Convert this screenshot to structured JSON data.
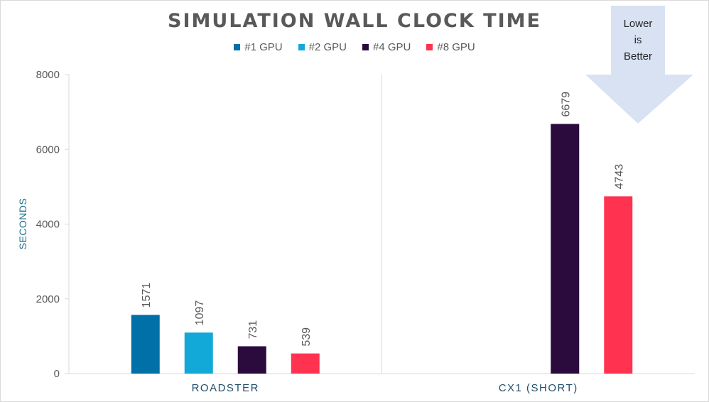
{
  "chart_data": {
    "type": "bar",
    "title": "SIMULATION WALL CLOCK TIME",
    "ylabel": "SECONDS",
    "xlabel": "",
    "ylim": [
      0,
      8000
    ],
    "yticks": [
      0,
      2000,
      4000,
      6000,
      8000
    ],
    "categories": [
      "ROADSTER",
      "CX1 (SHORT)"
    ],
    "legend_position": "top",
    "series": [
      {
        "name": "#1 GPU",
        "color": "#0070a8",
        "values": [
          1571,
          null
        ]
      },
      {
        "name": "#2 GPU",
        "color": "#12a8d8",
        "values": [
          1097,
          null
        ]
      },
      {
        "name": "#4 GPU",
        "color": "#2b0a3d",
        "values": [
          731,
          6679
        ]
      },
      {
        "name": "#8 GPU",
        "color": "#ff3350",
        "values": [
          539,
          4743
        ]
      }
    ],
    "annotation": {
      "lines": [
        "Lower",
        "is",
        "Better"
      ]
    }
  }
}
